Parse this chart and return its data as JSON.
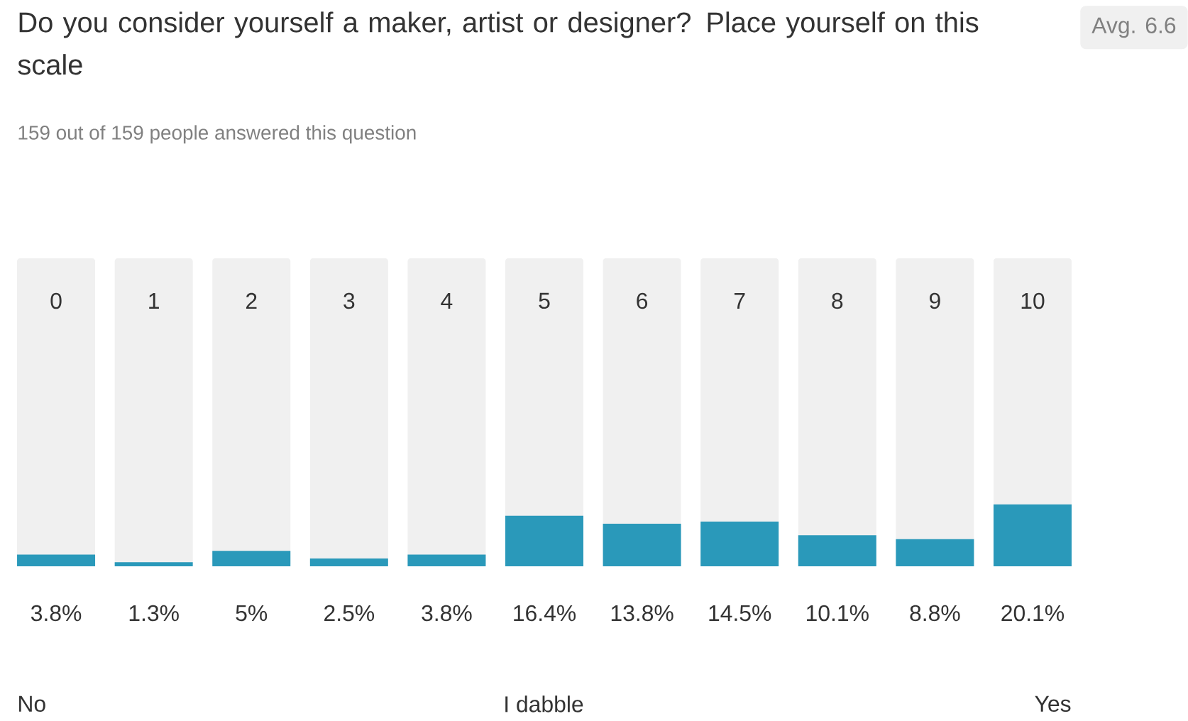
{
  "chart_data": {
    "type": "bar",
    "title": "Do you consider yourself a maker, artist or designer? Place yourself on this scale",
    "subtitle": "159 out of 159 people answered this question",
    "categories": [
      "0",
      "1",
      "2",
      "3",
      "4",
      "5",
      "6",
      "7",
      "8",
      "9",
      "10"
    ],
    "values": [
      3.8,
      1.3,
      5,
      2.5,
      3.8,
      16.4,
      13.8,
      14.5,
      10.1,
      8.8,
      20.1
    ],
    "value_labels": [
      "3.8%",
      "1.3%",
      "5%",
      "2.5%",
      "3.8%",
      "16.4%",
      "13.8%",
      "14.5%",
      "10.1%",
      "8.8%",
      "20.1%"
    ],
    "color": "#2a99ba",
    "ylim": [
      0,
      100
    ],
    "annotations": [
      "No",
      "I dabble",
      "Yes",
      "Avg. 6.6"
    ]
  }
}
